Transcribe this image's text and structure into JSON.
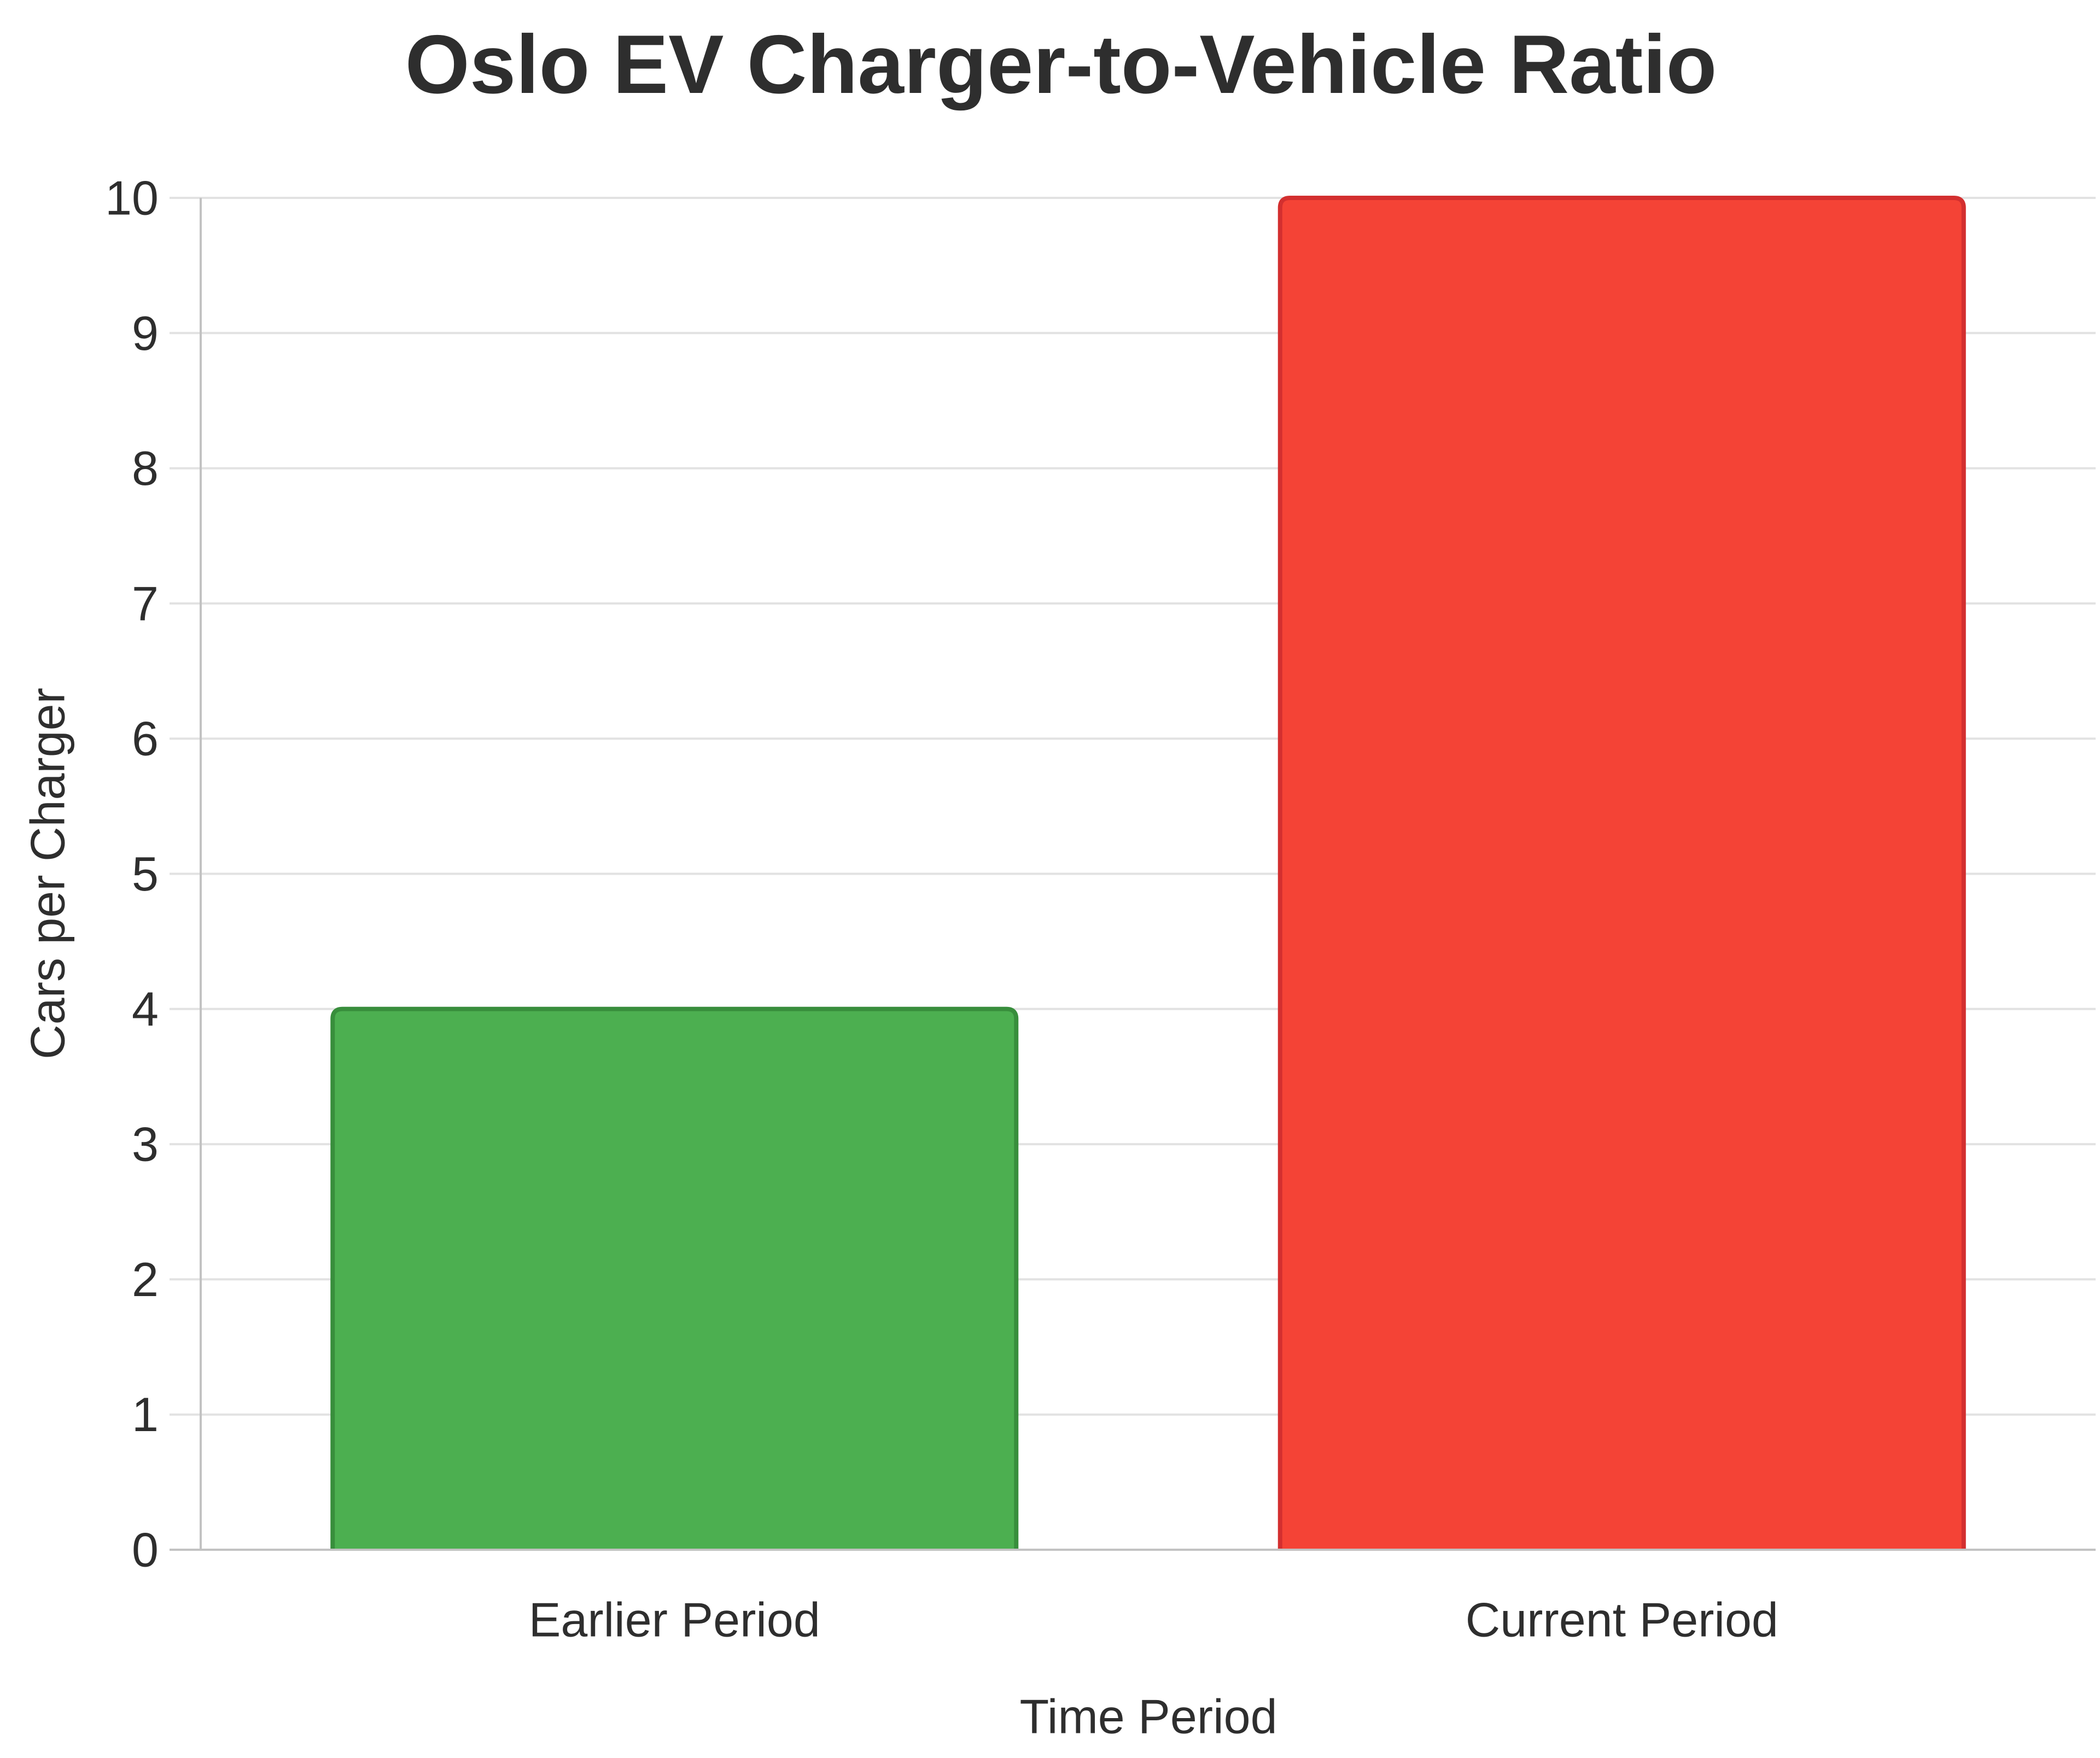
{
  "chart_data": {
    "type": "bar",
    "title": "Oslo EV Charger-to-Vehicle Ratio",
    "xlabel": "Time Period",
    "ylabel": "Cars per Charger",
    "categories": [
      "Earlier Period",
      "Current Period"
    ],
    "values": [
      4,
      10
    ],
    "series": [
      {
        "name": "Cars per Charger",
        "values": [
          4,
          10
        ]
      }
    ],
    "bar_fill_colors": [
      "#4CAF50",
      "#F44336"
    ],
    "bar_border_colors": [
      "#388E3C",
      "#D32F2F"
    ],
    "ylim": [
      0,
      10
    ],
    "yticks": [
      0,
      1,
      2,
      3,
      4,
      5,
      6,
      7,
      8,
      9,
      10
    ],
    "grid": "horizontal-only",
    "legend": "none",
    "background_color": "#FFFFFF",
    "text_color": "#2E2E2E",
    "grid_color": "#E2E2E2",
    "axis_line_color": "#C2C2C2"
  }
}
